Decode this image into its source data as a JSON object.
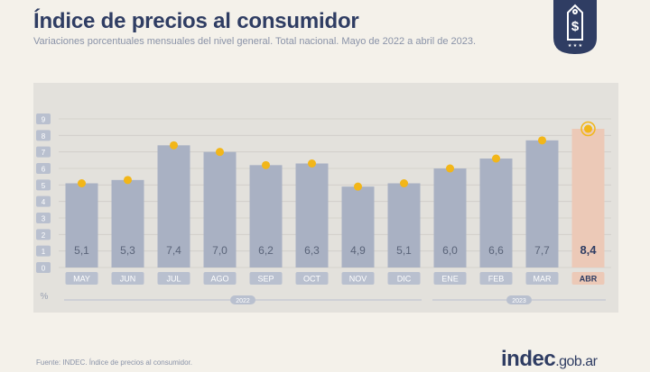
{
  "header": {
    "title": "Índice de precios al consumidor",
    "subtitle": "Variaciones porcentuales mensuales del nivel general. Total nacional. Mayo de 2022 a abril de 2023."
  },
  "chart_data": {
    "type": "bar",
    "categories": [
      "MAY",
      "JUN",
      "JUL",
      "AGO",
      "SEP",
      "OCT",
      "NOV",
      "DIC",
      "ENE",
      "FEB",
      "MAR",
      "ABR"
    ],
    "values": [
      5.1,
      5.3,
      7.4,
      7.0,
      6.2,
      6.3,
      4.9,
      5.1,
      6.0,
      6.6,
      7.7,
      8.4
    ],
    "value_labels": [
      "5,1",
      "5,3",
      "7,4",
      "7,0",
      "6,2",
      "6,3",
      "4,9",
      "5,1",
      "6,0",
      "6,6",
      "7,7",
      "8,4"
    ],
    "highlight_index": 11,
    "ylim": [
      0,
      9
    ],
    "yticks": [
      "0",
      "1",
      "2",
      "3",
      "4",
      "5",
      "6",
      "7",
      "8",
      "9"
    ],
    "yunit": "%",
    "year_groups": [
      {
        "label": "2022",
        "from": 0,
        "to": 7
      },
      {
        "label": "2023",
        "from": 8,
        "to": 11
      }
    ],
    "grid": true,
    "colors": {
      "bar": "#a9b1c3",
      "bar_highlight": "#ecc9b7",
      "dot": "#f2b619",
      "label": "#5a6479",
      "label_highlight": "#2f3d63",
      "tick_box": "#b9c0cf",
      "tick_box_highlight": "#ecc9b7"
    }
  },
  "footer": {
    "source": "Fuente: INDEC. Índice de precios al consumidor.",
    "logo_main": "indec",
    "logo_domain": ".gob.ar"
  }
}
